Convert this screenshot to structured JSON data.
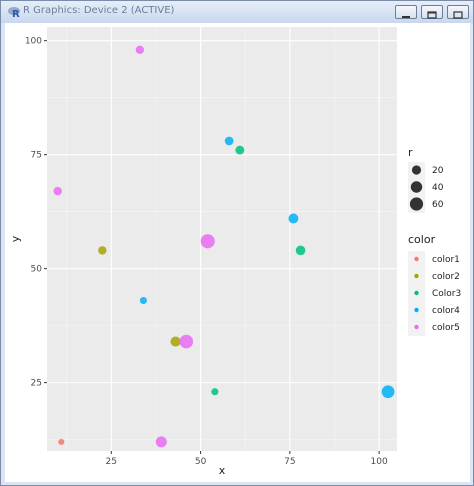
{
  "window": {
    "title": "R Graphics: Device 2 (ACTIVE)",
    "icon": "r-logo-icon",
    "buttons": [
      "minimize",
      "maximize",
      "close"
    ]
  },
  "chart_data": {
    "type": "scatter",
    "xlabel": "x",
    "ylabel": "y",
    "xlim": [
      7,
      105
    ],
    "ylim": [
      10,
      103
    ],
    "x_ticks": [
      25,
      50,
      75,
      100
    ],
    "y_ticks": [
      25,
      50,
      75,
      100
    ],
    "grid": true,
    "background": "#ebebeb",
    "size_legend": {
      "title": "r",
      "entries": [
        20,
        40,
        60
      ]
    },
    "color_legend": {
      "title": "color",
      "entries": [
        {
          "label": "color1",
          "color": "#F8766D"
        },
        {
          "label": "color2",
          "color": "#A3A500"
        },
        {
          "label": "Color3",
          "color": "#00BF7D"
        },
        {
          "label": "color4",
          "color": "#00B0F6"
        },
        {
          "label": "color5",
          "color": "#E76BF3"
        }
      ]
    },
    "points": [
      {
        "x": 11,
        "y": 12,
        "r": 4,
        "color": "color1"
      },
      {
        "x": 22.5,
        "y": 54,
        "r": 15,
        "color": "color2"
      },
      {
        "x": 43,
        "y": 34,
        "r": 28,
        "color": "color2"
      },
      {
        "x": 54,
        "y": 23,
        "r": 8,
        "color": "Color3"
      },
      {
        "x": 61,
        "y": 76,
        "r": 18,
        "color": "Color3"
      },
      {
        "x": 78,
        "y": 54,
        "r": 24,
        "color": "Color3"
      },
      {
        "x": 34,
        "y": 43,
        "r": 8,
        "color": "color4"
      },
      {
        "x": 58,
        "y": 78,
        "r": 17,
        "color": "color4"
      },
      {
        "x": 76,
        "y": 61,
        "r": 26,
        "color": "color4"
      },
      {
        "x": 102.5,
        "y": 23,
        "r": 55,
        "color": "color4"
      },
      {
        "x": 10,
        "y": 67,
        "r": 15,
        "color": "color5"
      },
      {
        "x": 33,
        "y": 98,
        "r": 15,
        "color": "color5"
      },
      {
        "x": 39,
        "y": 12,
        "r": 36,
        "color": "color5"
      },
      {
        "x": 46,
        "y": 34,
        "r": 65,
        "color": "color5"
      },
      {
        "x": 52,
        "y": 56,
        "r": 72,
        "color": "color5"
      }
    ]
  }
}
